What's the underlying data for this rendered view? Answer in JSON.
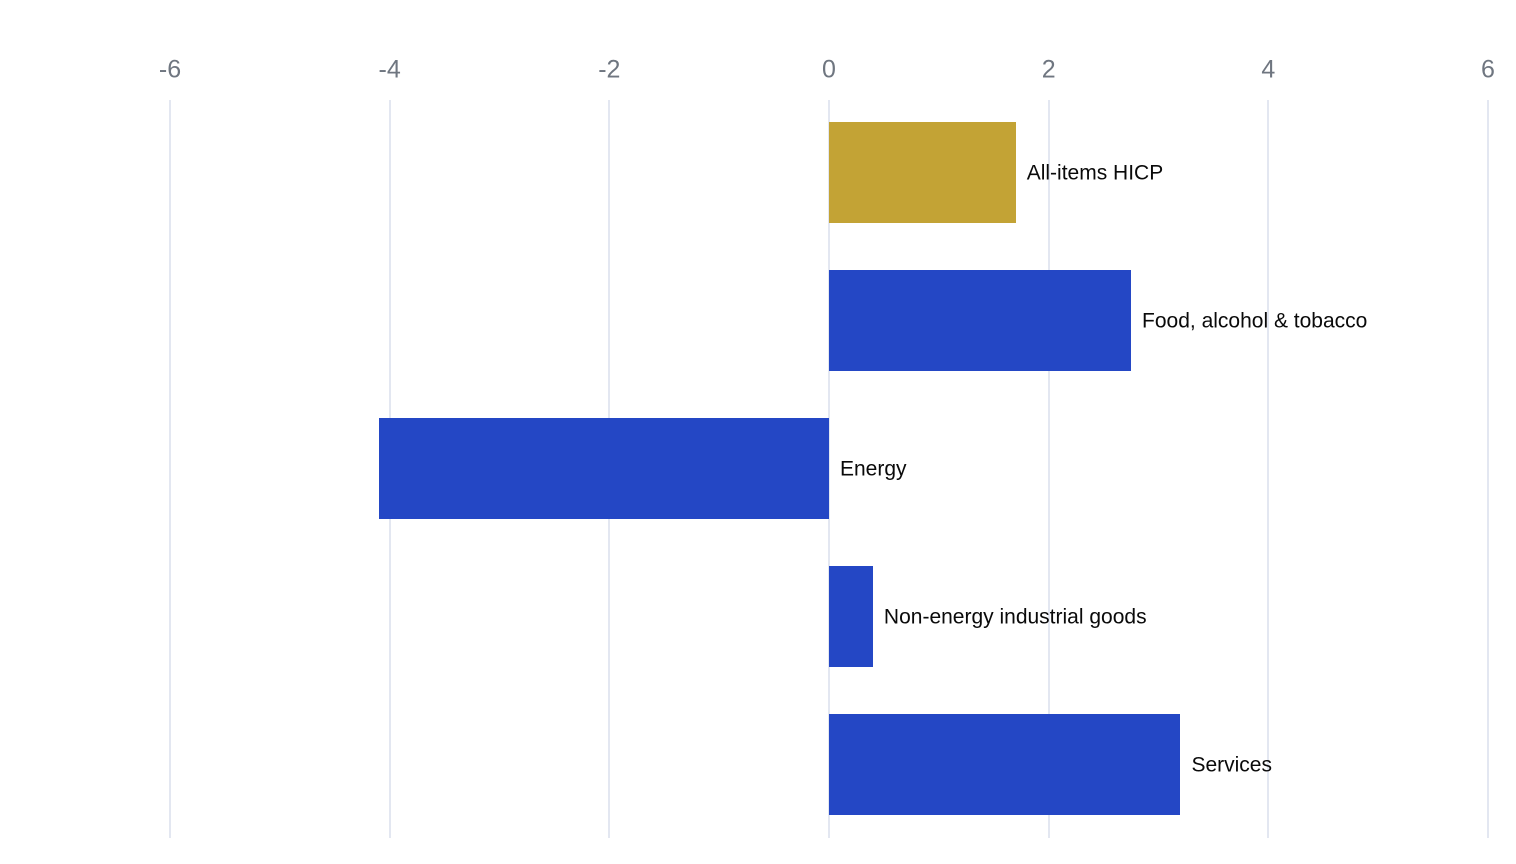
{
  "chart_data": {
    "type": "bar",
    "orientation": "horizontal",
    "title": "",
    "xlabel": "",
    "ylabel": "",
    "xlim": [
      -6,
      6
    ],
    "x_ticks": [
      -6,
      -4,
      -2,
      0,
      2,
      4,
      6
    ],
    "grid": true,
    "tick_position": "top",
    "label_position": "right-of-bar-end",
    "categories": [
      "All-items HICP",
      "Food, alcohol & tobacco",
      "Energy",
      "Non-energy industrial goods",
      "Services"
    ],
    "values": [
      1.7,
      2.75,
      -4.1,
      0.4,
      3.2
    ],
    "bar_colors": [
      "#C3A335",
      "#2447C5",
      "#2447C5",
      "#2447C5",
      "#2447C5"
    ],
    "colors": {
      "highlight_gold": "#C3A335",
      "series_blue": "#2447C5",
      "gridline": "#E3E7F1",
      "tick_text": "#6F7680",
      "label_text": "#0A0A0A",
      "background": "#FFFFFF"
    }
  }
}
